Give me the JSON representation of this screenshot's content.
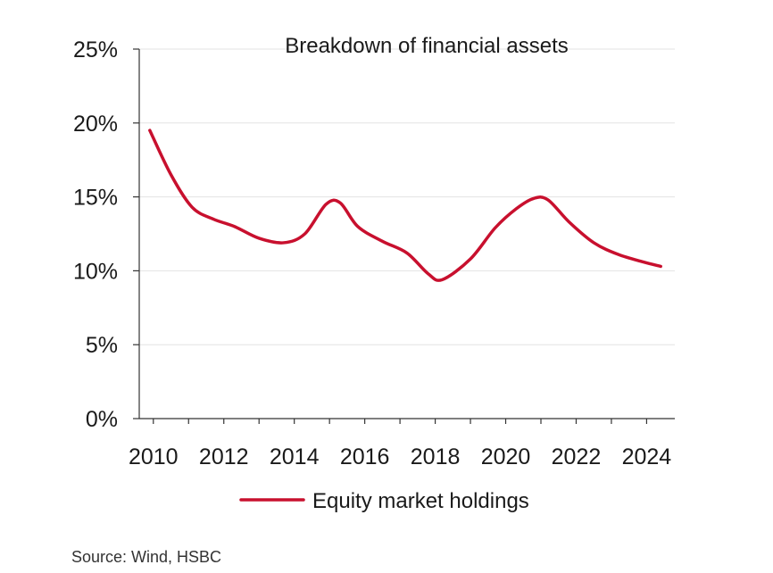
{
  "chart_data": {
    "type": "line",
    "title": "Breakdown of financial assets",
    "xlabel": "",
    "ylabel": "",
    "xlim": [
      2009.6,
      2024.8
    ],
    "ylim": [
      0,
      25
    ],
    "x_ticks": [
      "2010",
      "2012",
      "2014",
      "2016",
      "2018",
      "2020",
      "2022",
      "2024"
    ],
    "y_ticks": [
      "0%",
      "5%",
      "10%",
      "15%",
      "20%",
      "25%"
    ],
    "grid": "horizontal",
    "legend_position": "bottom-center",
    "series": [
      {
        "name": "Equity market holdings",
        "color": "#c8102e",
        "x": [
          2009.9,
          2010.5,
          2011.1,
          2011.7,
          2012.3,
          2013.0,
          2013.7,
          2014.3,
          2014.9,
          2015.3,
          2015.8,
          2016.5,
          2017.2,
          2017.8,
          2018.2,
          2019.0,
          2019.7,
          2020.3,
          2020.8,
          2021.2,
          2021.8,
          2022.5,
          2023.2,
          2023.9,
          2024.4
        ],
        "values": [
          19.5,
          16.5,
          14.3,
          13.5,
          13.0,
          12.2,
          11.9,
          12.5,
          14.5,
          14.6,
          13.0,
          12.0,
          11.2,
          9.8,
          9.4,
          10.8,
          12.9,
          14.2,
          14.9,
          14.8,
          13.3,
          11.9,
          11.1,
          10.6,
          10.3
        ]
      }
    ]
  },
  "source": "Source: Wind, HSBC"
}
